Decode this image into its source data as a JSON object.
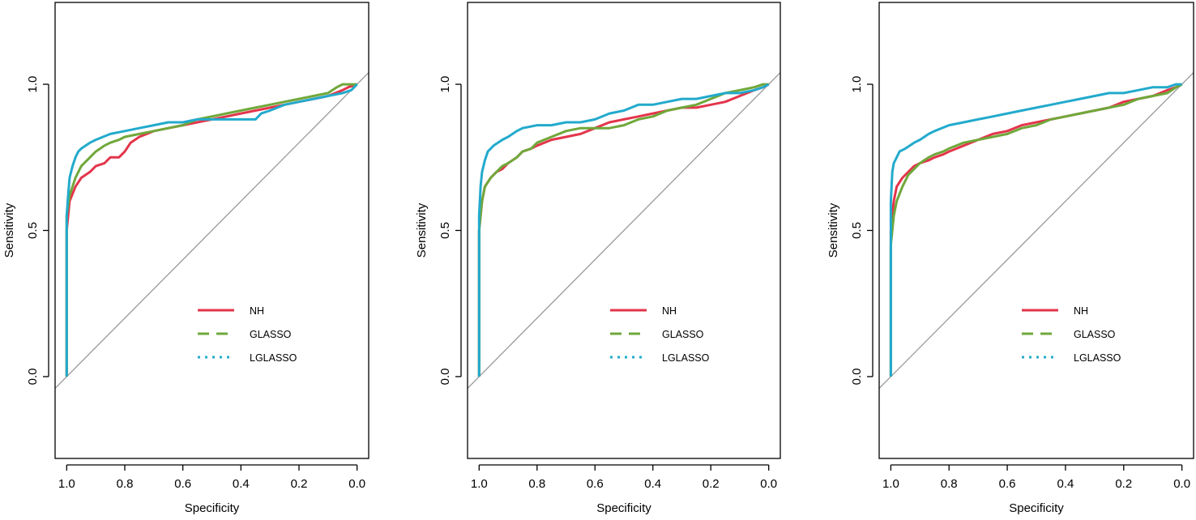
{
  "colors": {
    "NH": "#e3354b",
    "GLASSO": "#6fa83a",
    "LGLASSO": "#22aacc",
    "diagonal": "#999999",
    "axis": "#000000"
  },
  "chart_data": [
    {
      "type": "line",
      "title": "",
      "xlabel": "Specificity",
      "ylabel": "Sensitivity",
      "xlim": [
        1.04,
        -0.04
      ],
      "ylim": [
        -0.28,
        1.28
      ],
      "xticks": [
        {
          "v": 1.0,
          "label": "1.0"
        },
        {
          "v": 0.8,
          "label": "0.8"
        },
        {
          "v": 0.6,
          "label": "0.6"
        },
        {
          "v": 0.4,
          "label": "0.4"
        },
        {
          "v": 0.2,
          "label": "0.2"
        },
        {
          "v": 0.0,
          "label": "0.0"
        }
      ],
      "yticks": [
        {
          "v": 0.0,
          "label": "0.0"
        },
        {
          "v": 0.5,
          "label": "0.5"
        },
        {
          "v": 1.0,
          "label": "1.0"
        }
      ],
      "legend": {
        "position": "bottom-right",
        "entries": [
          "NH",
          "GLASSO",
          "LGLASSO"
        ]
      },
      "series": [
        {
          "name": "NH",
          "x": [
            1.0,
            1.0,
            0.99,
            0.97,
            0.95,
            0.92,
            0.9,
            0.87,
            0.85,
            0.82,
            0.8,
            0.78,
            0.75,
            0.7,
            0.65,
            0.6,
            0.55,
            0.5,
            0.45,
            0.4,
            0.35,
            0.3,
            0.25,
            0.2,
            0.15,
            0.1,
            0.05,
            0.03,
            0.0
          ],
          "y": [
            0.0,
            0.5,
            0.6,
            0.65,
            0.68,
            0.7,
            0.72,
            0.73,
            0.75,
            0.75,
            0.77,
            0.8,
            0.82,
            0.84,
            0.85,
            0.86,
            0.87,
            0.88,
            0.89,
            0.9,
            0.91,
            0.92,
            0.93,
            0.94,
            0.95,
            0.96,
            0.98,
            0.99,
            1.0
          ]
        },
        {
          "name": "GLASSO",
          "x": [
            1.0,
            1.0,
            0.99,
            0.97,
            0.95,
            0.92,
            0.9,
            0.87,
            0.85,
            0.82,
            0.8,
            0.75,
            0.7,
            0.65,
            0.6,
            0.55,
            0.5,
            0.45,
            0.4,
            0.35,
            0.3,
            0.25,
            0.2,
            0.15,
            0.1,
            0.07,
            0.05,
            0.0
          ],
          "y": [
            0.0,
            0.55,
            0.62,
            0.68,
            0.72,
            0.75,
            0.77,
            0.79,
            0.8,
            0.81,
            0.82,
            0.83,
            0.84,
            0.85,
            0.86,
            0.88,
            0.89,
            0.9,
            0.91,
            0.92,
            0.93,
            0.94,
            0.95,
            0.96,
            0.97,
            0.99,
            1.0,
            1.0
          ]
        },
        {
          "name": "LGLASSO",
          "x": [
            1.0,
            1.0,
            0.995,
            0.99,
            0.98,
            0.97,
            0.96,
            0.95,
            0.92,
            0.9,
            0.85,
            0.8,
            0.75,
            0.7,
            0.65,
            0.6,
            0.55,
            0.5,
            0.45,
            0.4,
            0.35,
            0.33,
            0.3,
            0.25,
            0.2,
            0.15,
            0.1,
            0.05,
            0.02,
            0.0
          ],
          "y": [
            0.0,
            0.55,
            0.62,
            0.68,
            0.72,
            0.75,
            0.77,
            0.78,
            0.8,
            0.81,
            0.83,
            0.84,
            0.85,
            0.86,
            0.87,
            0.87,
            0.88,
            0.88,
            0.88,
            0.88,
            0.88,
            0.9,
            0.91,
            0.93,
            0.94,
            0.95,
            0.96,
            0.97,
            0.98,
            1.0
          ]
        }
      ]
    },
    {
      "type": "line",
      "title": "",
      "xlabel": "Specificity",
      "ylabel": "Sensitivity",
      "xlim": [
        1.04,
        -0.04
      ],
      "ylim": [
        -0.28,
        1.28
      ],
      "xticks": [
        {
          "v": 1.0,
          "label": "1.0"
        },
        {
          "v": 0.8,
          "label": "0.8"
        },
        {
          "v": 0.6,
          "label": "0.6"
        },
        {
          "v": 0.4,
          "label": "0.4"
        },
        {
          "v": 0.2,
          "label": "0.2"
        },
        {
          "v": 0.0,
          "label": "0.0"
        }
      ],
      "yticks": [
        {
          "v": 0.0,
          "label": "0.0"
        },
        {
          "v": 0.5,
          "label": "0.5"
        },
        {
          "v": 1.0,
          "label": "1.0"
        }
      ],
      "legend": {
        "position": "bottom-right",
        "entries": [
          "NH",
          "GLASSO",
          "LGLASSO"
        ]
      },
      "series": [
        {
          "name": "NH",
          "x": [
            1.0,
            1.0,
            0.99,
            0.98,
            0.96,
            0.94,
            0.92,
            0.9,
            0.87,
            0.85,
            0.82,
            0.8,
            0.75,
            0.7,
            0.65,
            0.6,
            0.55,
            0.5,
            0.45,
            0.4,
            0.35,
            0.3,
            0.25,
            0.2,
            0.15,
            0.1,
            0.05,
            0.02,
            0.0
          ],
          "y": [
            0.0,
            0.5,
            0.6,
            0.65,
            0.68,
            0.7,
            0.71,
            0.73,
            0.75,
            0.77,
            0.78,
            0.79,
            0.81,
            0.82,
            0.83,
            0.85,
            0.87,
            0.88,
            0.89,
            0.9,
            0.91,
            0.92,
            0.92,
            0.93,
            0.94,
            0.96,
            0.98,
            0.99,
            1.0
          ]
        },
        {
          "name": "GLASSO",
          "x": [
            1.0,
            1.0,
            0.99,
            0.98,
            0.96,
            0.94,
            0.92,
            0.9,
            0.87,
            0.85,
            0.82,
            0.8,
            0.75,
            0.7,
            0.65,
            0.6,
            0.55,
            0.5,
            0.45,
            0.4,
            0.35,
            0.3,
            0.25,
            0.2,
            0.15,
            0.1,
            0.05,
            0.02,
            0.0
          ],
          "y": [
            0.0,
            0.5,
            0.6,
            0.65,
            0.68,
            0.7,
            0.72,
            0.73,
            0.75,
            0.77,
            0.78,
            0.8,
            0.82,
            0.84,
            0.85,
            0.85,
            0.85,
            0.86,
            0.88,
            0.89,
            0.91,
            0.92,
            0.93,
            0.95,
            0.97,
            0.98,
            0.99,
            1.0,
            1.0
          ]
        },
        {
          "name": "LGLASSO",
          "x": [
            1.0,
            1.0,
            0.995,
            0.99,
            0.98,
            0.97,
            0.95,
            0.92,
            0.9,
            0.87,
            0.85,
            0.8,
            0.75,
            0.7,
            0.65,
            0.6,
            0.55,
            0.5,
            0.45,
            0.4,
            0.35,
            0.3,
            0.25,
            0.2,
            0.15,
            0.1,
            0.05,
            0.02,
            0.0
          ],
          "y": [
            0.0,
            0.55,
            0.65,
            0.7,
            0.74,
            0.77,
            0.79,
            0.81,
            0.82,
            0.84,
            0.85,
            0.86,
            0.86,
            0.87,
            0.87,
            0.88,
            0.9,
            0.91,
            0.93,
            0.93,
            0.94,
            0.95,
            0.95,
            0.96,
            0.97,
            0.97,
            0.98,
            0.99,
            1.0
          ]
        }
      ]
    },
    {
      "type": "line",
      "title": "",
      "xlabel": "Specificity",
      "ylabel": "Sensitivity",
      "xlim": [
        1.04,
        -0.04
      ],
      "ylim": [
        -0.28,
        1.28
      ],
      "xticks": [
        {
          "v": 1.0,
          "label": "1.0"
        },
        {
          "v": 0.8,
          "label": "0.8"
        },
        {
          "v": 0.6,
          "label": "0.6"
        },
        {
          "v": 0.4,
          "label": "0.4"
        },
        {
          "v": 0.2,
          "label": "0.2"
        },
        {
          "v": 0.0,
          "label": "0.0"
        }
      ],
      "yticks": [
        {
          "v": 0.0,
          "label": "0.0"
        },
        {
          "v": 0.5,
          "label": "0.5"
        },
        {
          "v": 1.0,
          "label": "1.0"
        }
      ],
      "legend": {
        "position": "bottom-right",
        "entries": [
          "NH",
          "GLASSO",
          "LGLASSO"
        ]
      },
      "series": [
        {
          "name": "NH",
          "x": [
            1.0,
            1.0,
            0.99,
            0.98,
            0.96,
            0.94,
            0.92,
            0.9,
            0.87,
            0.85,
            0.82,
            0.8,
            0.75,
            0.7,
            0.65,
            0.6,
            0.55,
            0.5,
            0.45,
            0.4,
            0.35,
            0.3,
            0.25,
            0.2,
            0.15,
            0.1,
            0.05,
            0.02,
            0.0
          ],
          "y": [
            0.0,
            0.5,
            0.6,
            0.65,
            0.68,
            0.7,
            0.72,
            0.73,
            0.74,
            0.75,
            0.76,
            0.77,
            0.79,
            0.81,
            0.83,
            0.84,
            0.86,
            0.87,
            0.88,
            0.89,
            0.9,
            0.91,
            0.92,
            0.94,
            0.95,
            0.96,
            0.98,
            0.99,
            1.0
          ]
        },
        {
          "name": "GLASSO",
          "x": [
            1.0,
            1.0,
            0.99,
            0.98,
            0.96,
            0.94,
            0.92,
            0.9,
            0.87,
            0.85,
            0.82,
            0.8,
            0.75,
            0.7,
            0.65,
            0.6,
            0.55,
            0.5,
            0.45,
            0.4,
            0.35,
            0.3,
            0.25,
            0.2,
            0.15,
            0.1,
            0.05,
            0.02,
            0.0
          ],
          "y": [
            0.0,
            0.45,
            0.55,
            0.6,
            0.65,
            0.69,
            0.71,
            0.73,
            0.75,
            0.76,
            0.77,
            0.78,
            0.8,
            0.81,
            0.82,
            0.83,
            0.85,
            0.86,
            0.88,
            0.89,
            0.9,
            0.91,
            0.92,
            0.93,
            0.95,
            0.96,
            0.97,
            0.99,
            1.0
          ]
        },
        {
          "name": "LGLASSO",
          "x": [
            1.0,
            1.0,
            0.995,
            0.99,
            0.98,
            0.97,
            0.95,
            0.92,
            0.9,
            0.87,
            0.85,
            0.8,
            0.75,
            0.7,
            0.65,
            0.6,
            0.55,
            0.5,
            0.45,
            0.4,
            0.35,
            0.3,
            0.25,
            0.2,
            0.15,
            0.1,
            0.05,
            0.02,
            0.0
          ],
          "y": [
            0.0,
            0.6,
            0.7,
            0.73,
            0.75,
            0.77,
            0.78,
            0.8,
            0.81,
            0.83,
            0.84,
            0.86,
            0.87,
            0.88,
            0.89,
            0.9,
            0.91,
            0.92,
            0.93,
            0.94,
            0.95,
            0.96,
            0.97,
            0.97,
            0.98,
            0.99,
            0.99,
            1.0,
            1.0
          ]
        }
      ]
    }
  ]
}
